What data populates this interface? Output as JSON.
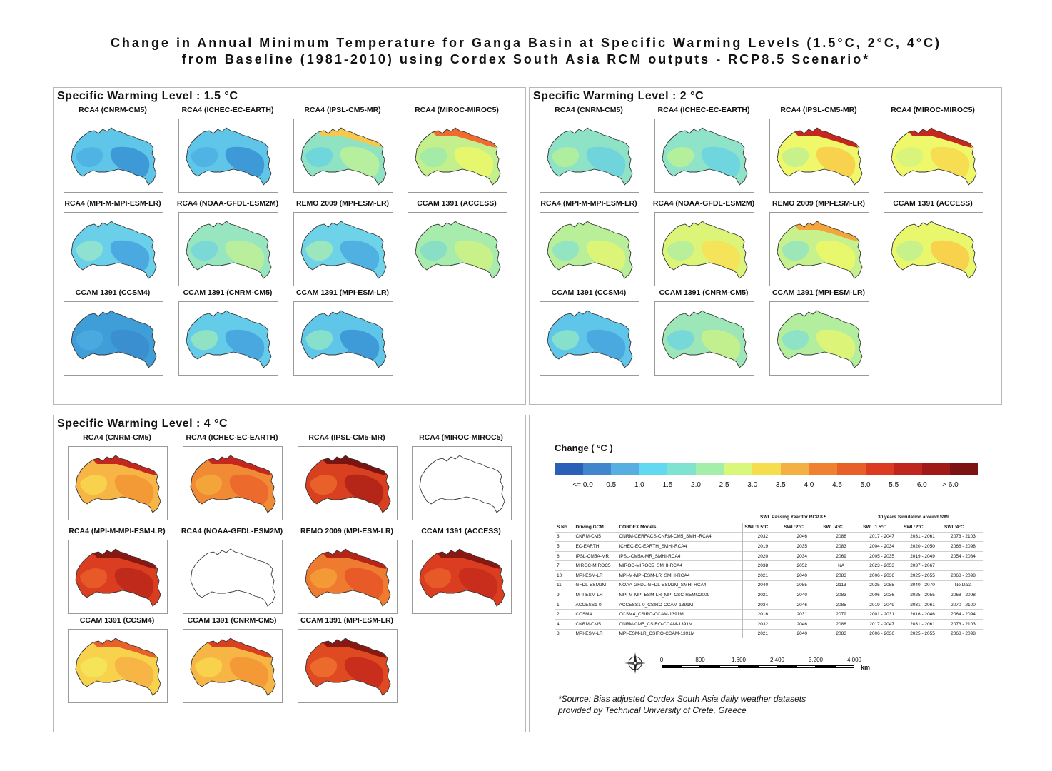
{
  "title": {
    "line1": "Change in Annual Minimum Temperature for Ganga Basin at Specific Warming Levels (1.5°C, 2°C, 4°C)",
    "line2": "from Baseline (1981-2010) using Cordex South Asia RCM outputs - RCP8.5 Scenario*"
  },
  "panels": [
    {
      "title": "Specific Warming Level : 1.5 °C",
      "maps": [
        {
          "label": "RCA4 (CNRM-CM5)",
          "base": "#5fc6ea",
          "patches": [
            "#3d9ad6",
            "#4fb3e3"
          ],
          "edge": ""
        },
        {
          "label": "RCA4 (ICHEC-EC-EARTH)",
          "base": "#5fc6ea",
          "patches": [
            "#3d9ad6",
            "#4fb3e3"
          ],
          "edge": ""
        },
        {
          "label": "RCA4 (IPSL-CM5-MR)",
          "base": "#8fe3c2",
          "patches": [
            "#b6ef9e",
            "#6fd6dc"
          ],
          "edge": "#f7c84a"
        },
        {
          "label": "RCA4 (MIROC-MIROC5)",
          "base": "#c3f08c",
          "patches": [
            "#e6f76e",
            "#a5eba8"
          ],
          "edge": "#ef6b2e"
        },
        {
          "label": "RCA4 (MPI-M-MPI-ESM-LR)",
          "base": "#6ad0ea",
          "patches": [
            "#4aa9e0",
            "#8ee2cf"
          ],
          "edge": ""
        },
        {
          "label": "RCA4 (NOAA-GFDL-ESM2M)",
          "base": "#98e6bf",
          "patches": [
            "#b9ef9c",
            "#7ad9d6"
          ],
          "edge": ""
        },
        {
          "label": "REMO 2009 (MPI-ESM-LR)",
          "base": "#6ed3e8",
          "patches": [
            "#4fb0e2",
            "#9be6bd"
          ],
          "edge": ""
        },
        {
          "label": "CCAM 1391 (ACCESS)",
          "base": "#a7ebad",
          "patches": [
            "#c8f18a",
            "#88dfc6"
          ],
          "edge": ""
        },
        {
          "label": "CCAM 1391 (CCSM4)",
          "base": "#3f9dd8",
          "patches": [
            "#3a8fd0",
            "#4aaae0"
          ],
          "edge": ""
        },
        {
          "label": "CCAM 1391 (CNRM-CM5)",
          "base": "#64cbe9",
          "patches": [
            "#4aa8e0",
            "#8fe3c4"
          ],
          "edge": ""
        },
        {
          "label": "CCAM 1391 (MPI-ESM-LR)",
          "base": "#5fc6ea",
          "patches": [
            "#3f9bd8",
            "#86e0cb"
          ],
          "edge": ""
        }
      ]
    },
    {
      "title": "Specific Warming Level : 2 °C",
      "maps": [
        {
          "label": "RCA4 (CNRM-CM5)",
          "base": "#8ee2c6",
          "patches": [
            "#6fd4dc",
            "#b0ee9f"
          ],
          "edge": ""
        },
        {
          "label": "RCA4 (ICHEC-EC-EARTH)",
          "base": "#8fe3c8",
          "patches": [
            "#6fd6df",
            "#b4ef9b"
          ],
          "edge": ""
        },
        {
          "label": "RCA4 (IPSL-CM5-MR)",
          "base": "#eef86a",
          "patches": [
            "#f8d24c",
            "#c9f18a"
          ],
          "edge": "#c5271f"
        },
        {
          "label": "RCA4 (MIROC-MIROC5)",
          "base": "#eef86a",
          "patches": [
            "#f6dd52",
            "#d9f47a"
          ],
          "edge": "#c5271f"
        },
        {
          "label": "RCA4 (MPI-M-MPI-ESM-LR)",
          "base": "#b9ef98",
          "patches": [
            "#dcf477",
            "#93e4c0"
          ],
          "edge": ""
        },
        {
          "label": "RCA4 (NOAA-GFDL-ESM2M)",
          "base": "#dcf477",
          "patches": [
            "#f5e45a",
            "#b9ef98"
          ],
          "edge": ""
        },
        {
          "label": "REMO 2009 (MPI-ESM-LR)",
          "base": "#c6f18c",
          "patches": [
            "#e9f76c",
            "#9ce6b8"
          ],
          "edge": "#f3a43a"
        },
        {
          "label": "CCAM 1391 (ACCESS)",
          "base": "#e9f76c",
          "patches": [
            "#f8d24c",
            "#c7f18b"
          ],
          "edge": ""
        },
        {
          "label": "CCAM 1391 (CCSM4)",
          "base": "#5fc6ea",
          "patches": [
            "#4aaae0",
            "#86e0cb"
          ],
          "edge": ""
        },
        {
          "label": "CCAM 1391 (CNRM-CM5)",
          "base": "#9ce6b8",
          "patches": [
            "#c3f08e",
            "#76d8d8"
          ],
          "edge": ""
        },
        {
          "label": "CCAM 1391 (MPI-ESM-LR)",
          "base": "#b3ee9e",
          "patches": [
            "#dcf477",
            "#8ee2c6"
          ],
          "edge": ""
        }
      ]
    },
    {
      "title": "Specific Warming Level : 4 °C",
      "maps": [
        {
          "label": "RCA4 (CNRM-CM5)",
          "base": "#f6b544",
          "patches": [
            "#f39a36",
            "#f8d24c"
          ],
          "edge": "#c5271f"
        },
        {
          "label": "RCA4 (ICHEC-EC-EARTH)",
          "base": "#f08a34",
          "patches": [
            "#ec6a2c",
            "#f4a53a"
          ],
          "edge": "#c5271f"
        },
        {
          "label": "RCA4 (IPSL-CM5-MR)",
          "base": "#d8401f",
          "patches": [
            "#b52619",
            "#e8602a"
          ],
          "edge": "#7a1410"
        },
        {
          "label": "RCA4 (MIROC-MIROC5)",
          "base": "#ffffff",
          "patches": [],
          "edge": ""
        },
        {
          "label": "RCA4 (MPI-M-MPI-ESM-LR)",
          "base": "#db3d20",
          "patches": [
            "#c02a1b",
            "#e75a28"
          ],
          "edge": "#8a1812"
        },
        {
          "label": "RCA4 (NOAA-GFDL-ESM2M)",
          "base": "#ffffff",
          "patches": [],
          "edge": ""
        },
        {
          "label": "REMO 2009 (MPI-ESM-LR)",
          "base": "#ef7b30",
          "patches": [
            "#e85a28",
            "#f39a36"
          ],
          "edge": "#b52619"
        },
        {
          "label": "CCAM 1391 (ACCESS)",
          "base": "#db3d20",
          "patches": [
            "#c92e1c",
            "#e75a28"
          ],
          "edge": "#8a1812"
        },
        {
          "label": "CCAM 1391 (CCSM4)",
          "base": "#f8d24c",
          "patches": [
            "#f6b544",
            "#f5e45a"
          ],
          "edge": "#e8602a"
        },
        {
          "label": "CCAM 1391 (CNRM-CM5)",
          "base": "#f6b544",
          "patches": [
            "#f39a36",
            "#f8d24c"
          ],
          "edge": "#d8401f"
        },
        {
          "label": "CCAM 1391 (MPI-ESM-LR)",
          "base": "#e04a22",
          "patches": [
            "#c92e1c",
            "#ec6a2c"
          ],
          "edge": "#8a1812"
        }
      ]
    }
  ],
  "legend": {
    "title": "Change ( °C )",
    "colors": [
      "#2a5fb8",
      "#3f86cc",
      "#57aee0",
      "#62d9f0",
      "#7fe3cf",
      "#a3eeaa",
      "#d9f77a",
      "#f5de4e",
      "#f4b143",
      "#ef8230",
      "#e85f28",
      "#dc3b22",
      "#c0261d",
      "#a11a17",
      "#7c1212"
    ],
    "ticks": [
      "<= 0.0",
      "0.5",
      "1.0",
      "1.5",
      "2.0",
      "2.5",
      "3.0",
      "3.5",
      "4.0",
      "4.5",
      "5.0",
      "5.5",
      "6.0",
      "> 6.0"
    ]
  },
  "table": {
    "group_headers": {
      "swl": "SWL Passing Year for RCP 8.5",
      "sim": "30 years Simulation around SWL"
    },
    "columns": [
      "S.No",
      "Driving GCM",
      "CORDEX Models",
      "SWL:1.5°C",
      "SWL:2°C",
      "SWL:4°C",
      "SWL:1.5°C",
      "SWL:2°C",
      "SWL:4°C"
    ],
    "rows": [
      [
        "3",
        "CNRM-CM5",
        "CNRM-CERFACS-CNRM-CM5_SMHI-RCA4",
        "2032",
        "2046",
        "2088",
        "2017 - 2047",
        "2031 - 2061",
        "2073 - 2103"
      ],
      [
        "5",
        "EC-EARTH",
        "ICHEC-EC-EARTH_SMHI-RCA4",
        "2019",
        "2035",
        "2083",
        "2004 - 2034",
        "2020 - 2050",
        "2068 - 2098"
      ],
      [
        "6",
        "IPSL-CM5A-MR",
        "IPSL-CM5A-MR_SMHI-RCA4",
        "2020",
        "2034",
        "2069",
        "2005 - 2035",
        "2019 - 2049",
        "2054 - 2084"
      ],
      [
        "7",
        "MIROC-MIROC5",
        "MIROC-MIROC5_SMHI-RCA4",
        "2038",
        "2052",
        "NA",
        "2023 - 2053",
        "2037 - 2067",
        ""
      ],
      [
        "10",
        "MPI-ESM-LR",
        "MPI-M-MPI-ESM-LR_SMHI-RCA4",
        "2021",
        "2040",
        "2083",
        "2006 - 2036",
        "2025 - 2055",
        "2068 - 2098"
      ],
      [
        "11",
        "GFDL-ESM2M",
        "NOAA-GFDL-GFDL-ESM2M_SMHI-RCA4",
        "2040",
        "2055",
        "2113",
        "2025 - 2055",
        "2040 - 2070",
        "No Data"
      ],
      [
        "9",
        "MPI-ESM-LR",
        "MPI-M-MPI-ESM-LR_MPI-CSC-REMO2009",
        "2021",
        "2040",
        "2083",
        "2006 - 2036",
        "2025 - 2055",
        "2068 - 2098"
      ],
      [
        "1",
        "ACCESS1-0",
        "ACCESS1-0_CSIRO-CCAM-1391M",
        "2034",
        "2046",
        "2085",
        "2019 - 2049",
        "2031 - 2061",
        "2070 - 2100"
      ],
      [
        "2",
        "CCSM4",
        "CCSM4_CSIRO-CCAM-1391M",
        "2016",
        "2031",
        "2079",
        "2001 - 2031",
        "2016 - 2046",
        "2064 - 2094"
      ],
      [
        "4",
        "CNRM-CM5",
        "CNRM-CM5_CSIRO-CCAM-1391M",
        "2032",
        "2046",
        "2088",
        "2017 - 2047",
        "2031 - 2061",
        "2073 - 2103"
      ],
      [
        "8",
        "MPI-ESM-LR",
        "MPI-ESM-LR_CSIRO-CCAM-1391M",
        "2021",
        "2040",
        "2083",
        "2006 - 2036",
        "2025 - 2055",
        "2068 - 2098"
      ]
    ]
  },
  "scalebar": {
    "labels": [
      "0",
      "800",
      "1,600",
      "2,400",
      "3,200",
      "4,000"
    ],
    "unit": "km"
  },
  "source": {
    "line1": "*Source: Bias adjusted Cordex South Asia daily weather datasets",
    "line2": "provided by Technical University of Crete, Greece"
  }
}
